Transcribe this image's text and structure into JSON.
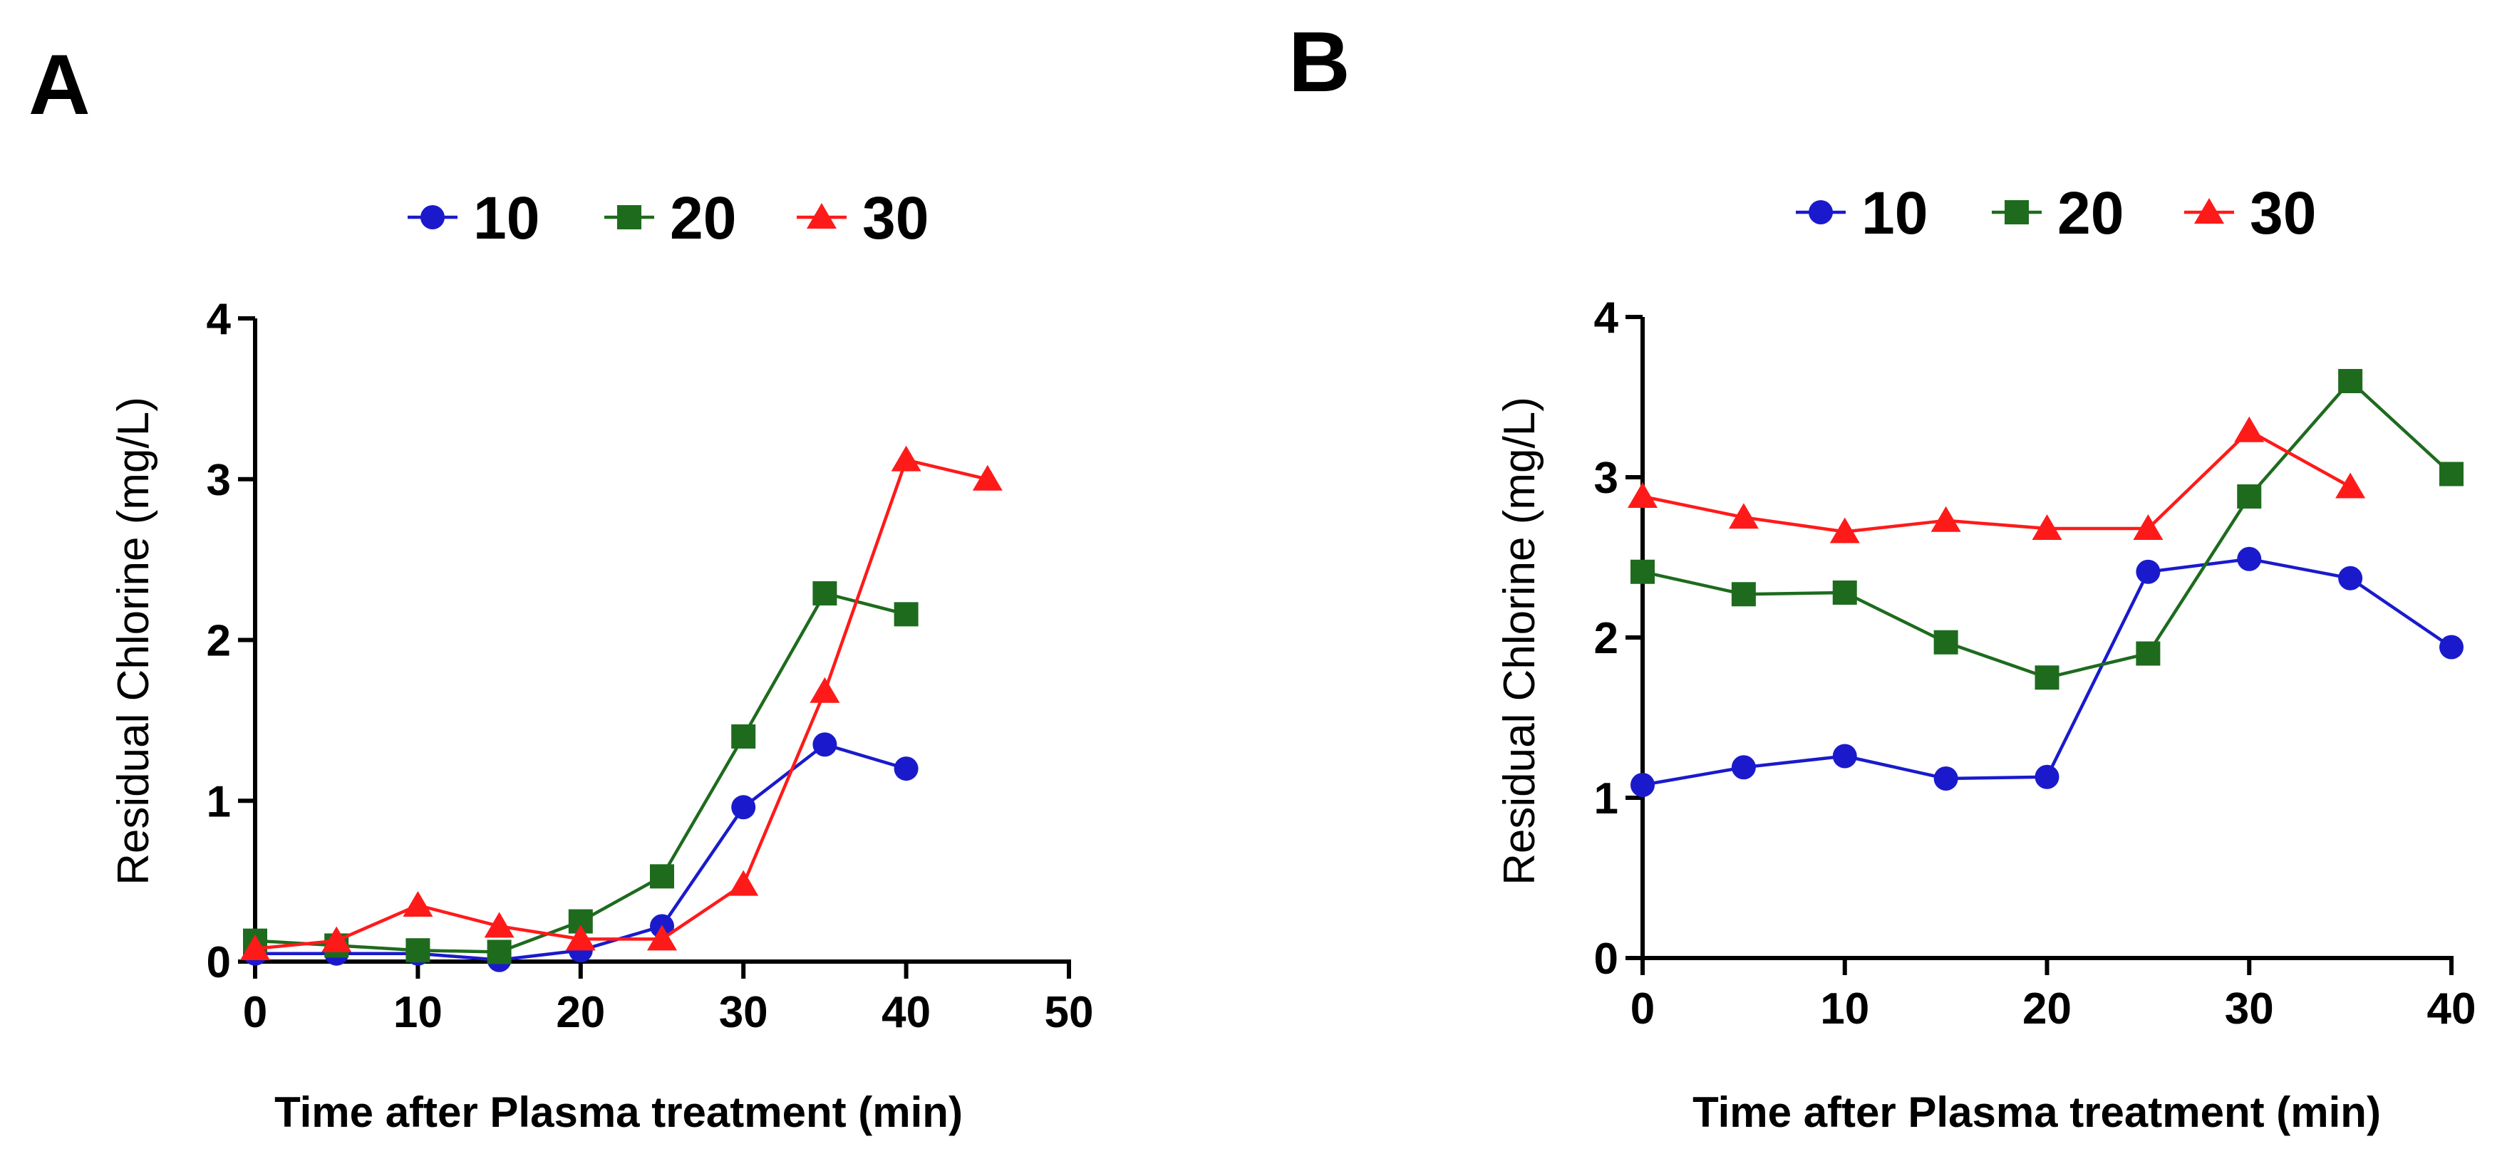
{
  "chart_data": [
    {
      "panel": "A",
      "type": "line",
      "xlabel": "Time after Plasma treatment (min)",
      "ylabel": "Residual Chlorine (mg/L)",
      "xlim": [
        0,
        50
      ],
      "ylim": [
        0,
        4
      ],
      "xticks": [
        0,
        10,
        20,
        30,
        40,
        50
      ],
      "yticks": [
        0,
        1,
        2,
        3,
        4
      ],
      "legend_position": "top-center",
      "grid": false,
      "series": [
        {
          "name": "10",
          "color": "#1a1acc",
          "marker": "circle",
          "x": [
            0,
            5,
            10,
            15,
            20,
            25,
            30,
            35,
            40
          ],
          "y": [
            0.05,
            0.05,
            0.05,
            0.01,
            0.07,
            0.22,
            0.96,
            1.35,
            1.2
          ]
        },
        {
          "name": "20",
          "color": "#1e6b1e",
          "marker": "square",
          "x": [
            0,
            5,
            10,
            15,
            20,
            25,
            30,
            35,
            40
          ],
          "y": [
            0.13,
            0.1,
            0.07,
            0.06,
            0.25,
            0.53,
            1.4,
            2.29,
            2.16
          ]
        },
        {
          "name": "30",
          "color": "#ff1a1a",
          "marker": "triangle",
          "x": [
            0,
            5,
            10,
            15,
            20,
            25,
            30,
            35,
            40,
            45
          ],
          "y": [
            0.08,
            0.13,
            0.35,
            0.22,
            0.14,
            0.14,
            0.48,
            1.68,
            3.12,
            3.0
          ]
        }
      ]
    },
    {
      "panel": "B",
      "type": "line",
      "xlabel": "Time after Plasma treatment (min)",
      "ylabel": "Residual Chlorine (mg/L)",
      "xlim": [
        0,
        40
      ],
      "ylim": [
        0,
        4
      ],
      "xticks": [
        0,
        10,
        20,
        30,
        40
      ],
      "yticks": [
        0,
        1,
        2,
        3,
        4
      ],
      "legend_position": "top-center",
      "grid": false,
      "series": [
        {
          "name": "10",
          "color": "#1a1acc",
          "marker": "circle",
          "x": [
            0,
            5,
            10,
            15,
            20,
            25,
            30,
            35,
            40
          ],
          "y": [
            1.08,
            1.19,
            1.26,
            1.12,
            1.13,
            2.41,
            2.49,
            2.37,
            1.94
          ]
        },
        {
          "name": "20",
          "color": "#1e6b1e",
          "marker": "square",
          "x": [
            0,
            5,
            10,
            15,
            20,
            25,
            30,
            35,
            40
          ],
          "y": [
            2.41,
            2.27,
            2.28,
            1.97,
            1.75,
            1.9,
            2.88,
            3.6,
            3.02
          ]
        },
        {
          "name": "30",
          "color": "#ff1a1a",
          "marker": "triangle",
          "x": [
            0,
            5,
            10,
            15,
            20,
            25,
            30,
            35
          ],
          "y": [
            2.88,
            2.75,
            2.66,
            2.73,
            2.68,
            2.68,
            3.29,
            2.94
          ]
        }
      ]
    }
  ]
}
